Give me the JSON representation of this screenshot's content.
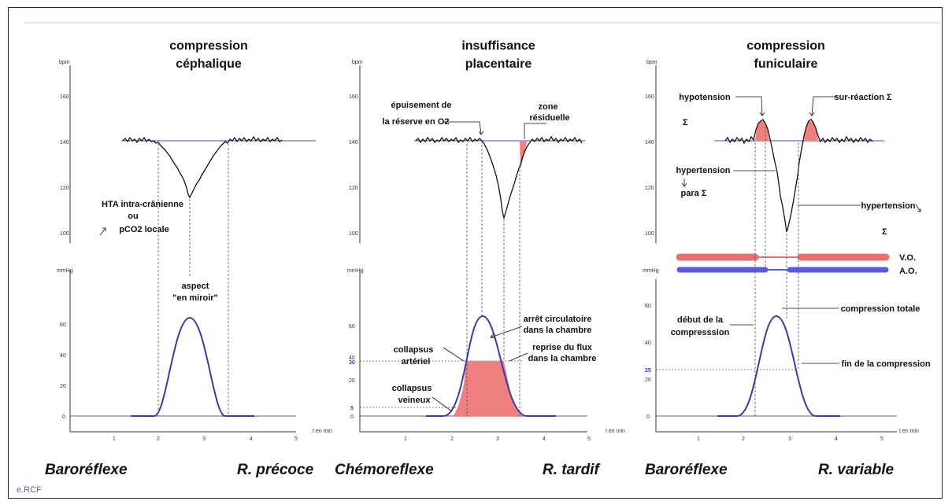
{
  "panels": [
    {
      "title_line1": "compression",
      "title_line2": "céphalique",
      "fhr_unit": "bpm",
      "fhr_ticks": [
        "160",
        "140",
        "120",
        "100"
      ],
      "pressure_unit": "mmHg",
      "pressure_ticks": [
        "60",
        "40",
        "20",
        "0"
      ],
      "x_ticks": [
        "1",
        "2",
        "3",
        "4",
        "5"
      ],
      "x_unit": "t en min",
      "annotations": {
        "a1": "HTA intra-crânienne",
        "a2": "ou",
        "a3": "pCO2 locale",
        "a4": "aspect",
        "a5": "\"en miroir\""
      },
      "footer_left": "Baroréflexe",
      "footer_right": "R. précoce"
    },
    {
      "title_line1": "insuffisance",
      "title_line2": "placentaire",
      "fhr_unit": "bpm",
      "fhr_ticks": [
        "160",
        "140",
        "120",
        "100"
      ],
      "pressure_unit": "mmHg",
      "pressure_ticks": [
        "60",
        "40",
        "30",
        "20",
        "5",
        "0"
      ],
      "x_ticks": [
        "1",
        "2",
        "3",
        "4",
        "5"
      ],
      "x_unit": "t en min",
      "annotations": {
        "a1": "épuisement de",
        "a2": "la réserve en O2",
        "a3": "zone",
        "a4": "résiduelle",
        "a5": "arrêt circulatoire",
        "a6": "dans la chambre",
        "a7": "collapsus",
        "a8": "artériel",
        "a9": "reprise du flux",
        "a10": "dans la chambre",
        "a11": "collapsus",
        "a12": "veineux"
      },
      "footer_left": "Chémoreflexe",
      "footer_right": "R. tardif"
    },
    {
      "title_line1": "compression",
      "title_line2": "funiculaire",
      "fhr_unit": "bpm",
      "fhr_ticks": [
        "160",
        "140",
        "120",
        "100"
      ],
      "pressure_unit": "mmHg",
      "pressure_ticks": [
        "60",
        "40",
        "25",
        "20",
        "0"
      ],
      "x_ticks": [
        "1",
        "2",
        "3",
        "4",
        "5"
      ],
      "x_unit": "t en min",
      "annotations": {
        "a1": "hypotension",
        "a2": "Σ",
        "a3": "sur-réaction Σ",
        "a4": "hypertension",
        "a5": "para Σ",
        "a6": "hypertension",
        "a7": "Σ",
        "a8": "V.O.",
        "a9": "A.O.",
        "a10": "compression totale",
        "a11": "début de la",
        "a12": "compresssion",
        "a13": "fin de la compression"
      },
      "footer_left": "Baroréflexe",
      "footer_right": "R. variable"
    }
  ],
  "watermark": "e.RCF",
  "colors": {
    "baseline": "#6b6bd8",
    "pressure_curve": "#3a3aa8",
    "highlight": "#f08080",
    "venous_bar": "#e87070",
    "arterial_bar": "#5a5ae0"
  }
}
